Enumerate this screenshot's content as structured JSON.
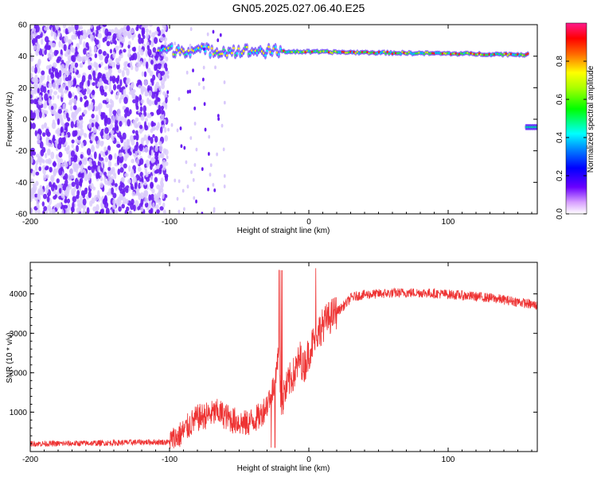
{
  "title": "GN05.2025.027.06.40.E25",
  "colors": {
    "spectral_dot": "#6a1cf2",
    "spectral_light": "#d9c9fb",
    "snr_line": "#ee3333"
  },
  "chart_data": [
    {
      "type": "heatmap",
      "name": "spectrogram",
      "xlabel": "Height of straight line (km)",
      "ylabel": "Frequency (Hz)",
      "xlim": [
        -200,
        164
      ],
      "ylim": [
        -60,
        60
      ],
      "xticks": [
        -200,
        -100,
        0,
        100
      ],
      "yticks": [
        -60,
        -40,
        -20,
        0,
        20,
        40,
        60
      ],
      "colorbar": {
        "label": "Normalized spectral amplitude",
        "range": [
          0,
          1
        ],
        "ticks": [
          "0.0",
          "0.2",
          "0.4",
          "0.6",
          "0.8"
        ],
        "colormap": "rainbow (white-violet-blue-cyan-green-yellow-red-pink)"
      },
      "features": [
        {
          "desc": "broadband noise",
          "x_range": [
            -200,
            -102
          ],
          "freq_range": [
            -60,
            60
          ]
        },
        {
          "desc": "sparse noise",
          "x_range": [
            -102,
            -60
          ],
          "freq_range": [
            -60,
            60
          ]
        },
        {
          "desc": "tonal line",
          "x_range": [
            -108,
            158
          ],
          "freq_hz": [
            44,
            41
          ]
        },
        {
          "desc": "short line",
          "x_range": [
            156,
            164
          ],
          "freq_hz": -5
        }
      ]
    },
    {
      "type": "line",
      "name": "snr",
      "xlabel": "Height of straight line (km)",
      "ylabel": "SNR (10 * v/v)",
      "xlim": [
        -200,
        164
      ],
      "ylim": [
        0,
        4800
      ],
      "xticks": [
        -200,
        -100,
        0,
        100
      ],
      "yticks": [
        1000,
        2000,
        3000,
        4000
      ],
      "series": [
        {
          "x": [
            -200,
            -180,
            -160,
            -140,
            -120,
            -100,
            -95,
            -90,
            -85,
            -80,
            -75,
            -70,
            -65,
            -60,
            -55,
            -50,
            -45,
            -40,
            -35,
            -30,
            -27,
            -24,
            -22,
            -20,
            -18,
            -16,
            -14,
            -12,
            -10,
            -8,
            -6,
            -4,
            -2,
            0,
            2,
            4,
            6,
            8,
            10,
            12,
            15,
            18,
            20,
            22,
            25,
            28,
            30,
            35,
            40,
            50,
            60,
            70,
            80,
            90,
            100,
            110,
            120,
            130,
            140,
            150,
            164
          ],
          "y": [
            200,
            200,
            210,
            220,
            240,
            240,
            350,
            500,
            700,
            850,
            900,
            950,
            1000,
            900,
            800,
            750,
            700,
            800,
            900,
            1200,
            1500,
            1700,
            2600,
            1200,
            1400,
            1600,
            1800,
            1900,
            2000,
            2200,
            2400,
            2100,
            2300,
            2500,
            2700,
            2800,
            3000,
            3100,
            3200,
            3300,
            3400,
            3500,
            3550,
            3600,
            3700,
            3800,
            3900,
            3950,
            3980,
            4000,
            4020,
            4030,
            4030,
            4010,
            3990,
            3960,
            3930,
            3900,
            3850,
            3800,
            3700
          ]
        }
      ]
    }
  ]
}
